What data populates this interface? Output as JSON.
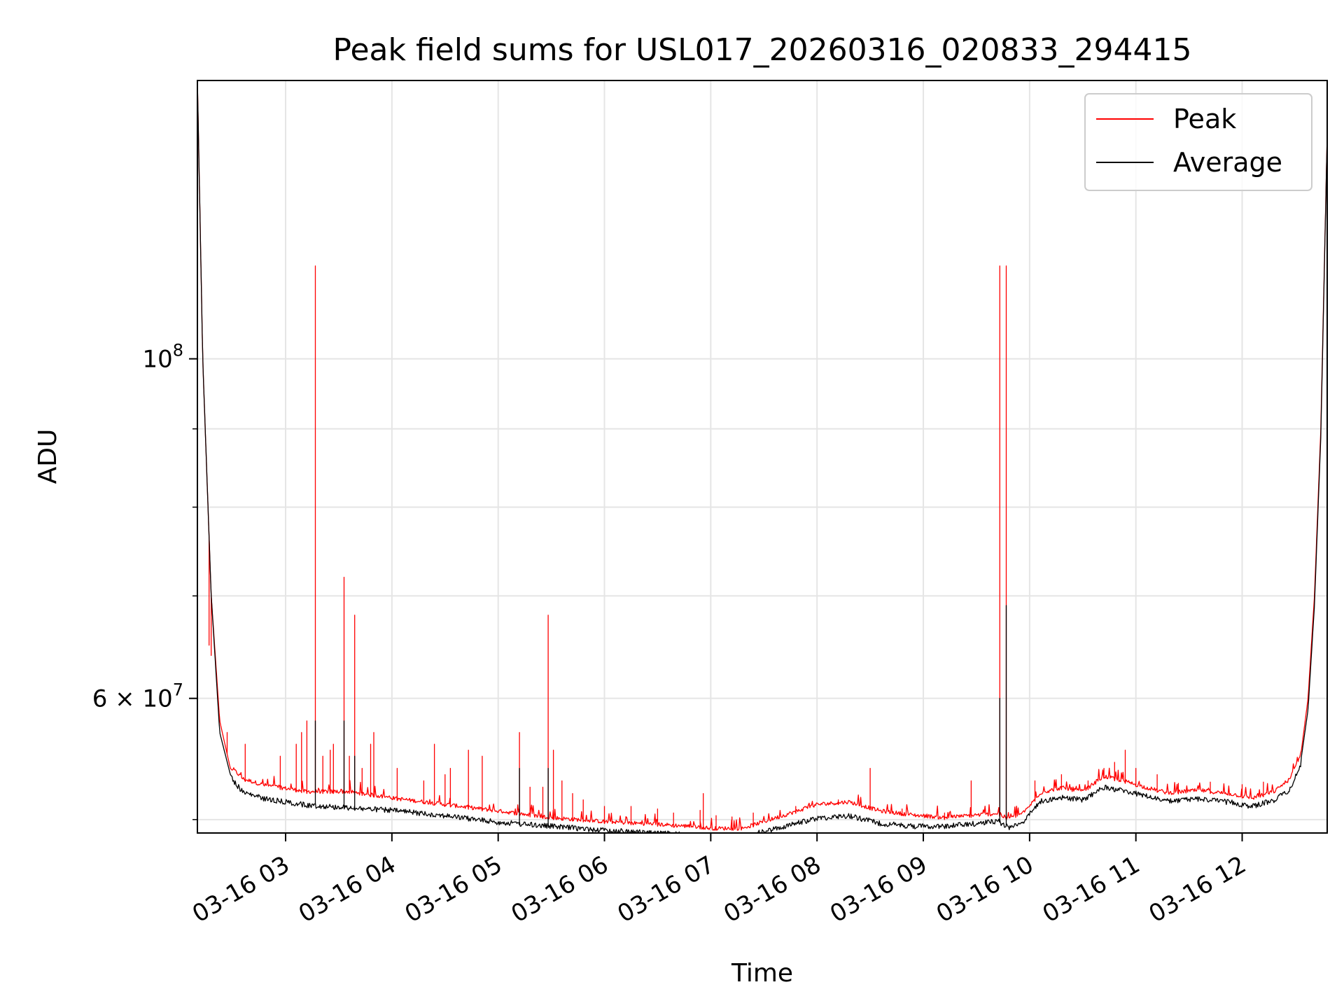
{
  "chart_data": {
    "type": "line",
    "title": "Peak field sums for USL017_20260316_020833_294415",
    "xlabel": "Time",
    "ylabel": "ADU",
    "yscale": "log",
    "xlim_hours": [
      2.17,
      12.8
    ],
    "ylim": [
      49000000,
      152000000
    ],
    "grid": true,
    "legend_position": "top-right",
    "x_ticks": [
      {
        "value": 3,
        "label": "03-16 03"
      },
      {
        "value": 4,
        "label": "03-16 04"
      },
      {
        "value": 5,
        "label": "03-16 05"
      },
      {
        "value": 6,
        "label": "03-16 06"
      },
      {
        "value": 7,
        "label": "03-16 07"
      },
      {
        "value": 8,
        "label": "03-16 08"
      },
      {
        "value": 9,
        "label": "03-16 09"
      },
      {
        "value": 10,
        "label": "03-16 10"
      },
      {
        "value": 11,
        "label": "03-16 11"
      },
      {
        "value": 12,
        "label": "03-16 12"
      }
    ],
    "y_major_ticks": [
      {
        "value": 100000000,
        "base": "10",
        "exp": "8",
        "mult": ""
      },
      {
        "value": 60000000,
        "base": "10",
        "exp": "7",
        "mult": "6"
      }
    ],
    "y_minor_ticks": [
      50000000,
      70000000,
      80000000,
      90000000
    ],
    "series": [
      {
        "name": "Peak",
        "color": "#ff0000",
        "baseline": [
          [
            2.17,
            152000000
          ],
          [
            2.22,
            100000000
          ],
          [
            2.3,
            70000000
          ],
          [
            2.38,
            58000000
          ],
          [
            2.48,
            54000000
          ],
          [
            2.6,
            53000000
          ],
          [
            2.8,
            52500000
          ],
          [
            3.2,
            52000000
          ],
          [
            3.6,
            52000000
          ],
          [
            4.0,
            51500000
          ],
          [
            4.5,
            51000000
          ],
          [
            5.0,
            50500000
          ],
          [
            5.5,
            50000000
          ],
          [
            6.0,
            49700000
          ],
          [
            6.5,
            49500000
          ],
          [
            6.9,
            49300000
          ],
          [
            7.0,
            49200000
          ],
          [
            7.3,
            49200000
          ],
          [
            7.7,
            50200000
          ],
          [
            8.0,
            51000000
          ],
          [
            8.3,
            51200000
          ],
          [
            8.6,
            50500000
          ],
          [
            8.9,
            50200000
          ],
          [
            9.2,
            50000000
          ],
          [
            9.5,
            50200000
          ],
          [
            9.7,
            50300000
          ],
          [
            9.8,
            49900000
          ],
          [
            9.95,
            50400000
          ],
          [
            10.1,
            51900000
          ],
          [
            10.3,
            52300000
          ],
          [
            10.5,
            52000000
          ],
          [
            10.7,
            53200000
          ],
          [
            10.9,
            52800000
          ],
          [
            11.1,
            52300000
          ],
          [
            11.3,
            51900000
          ],
          [
            11.6,
            52100000
          ],
          [
            11.9,
            51800000
          ],
          [
            12.1,
            51500000
          ],
          [
            12.3,
            52000000
          ],
          [
            12.45,
            53000000
          ],
          [
            12.55,
            55000000
          ],
          [
            12.62,
            60000000
          ],
          [
            12.68,
            70000000
          ],
          [
            12.74,
            90000000
          ],
          [
            12.8,
            140000000
          ]
        ],
        "spikes": [
          [
            2.28,
            65000000
          ],
          [
            2.3,
            64000000
          ],
          [
            2.45,
            57000000
          ],
          [
            2.62,
            56000000
          ],
          [
            2.95,
            55000000
          ],
          [
            3.1,
            56000000
          ],
          [
            3.15,
            57000000
          ],
          [
            3.2,
            58000000
          ],
          [
            3.28,
            115000000
          ],
          [
            3.35,
            55000000
          ],
          [
            3.42,
            55500000
          ],
          [
            3.45,
            56000000
          ],
          [
            3.55,
            72000000
          ],
          [
            3.6,
            55000000
          ],
          [
            3.65,
            68000000
          ],
          [
            3.72,
            54000000
          ],
          [
            3.8,
            56000000
          ],
          [
            3.83,
            57000000
          ],
          [
            4.05,
            54000000
          ],
          [
            4.3,
            53000000
          ],
          [
            4.4,
            56000000
          ],
          [
            4.5,
            53500000
          ],
          [
            4.55,
            54000000
          ],
          [
            4.72,
            55500000
          ],
          [
            4.85,
            55000000
          ],
          [
            5.2,
            57000000
          ],
          [
            5.3,
            52500000
          ],
          [
            5.42,
            52500000
          ],
          [
            5.47,
            68000000
          ],
          [
            5.52,
            55500000
          ],
          [
            5.6,
            53000000
          ],
          [
            5.7,
            52000000
          ],
          [
            5.8,
            51500000
          ],
          [
            6.0,
            51000000
          ],
          [
            6.25,
            51000000
          ],
          [
            6.5,
            50800000
          ],
          [
            6.65,
            50500000
          ],
          [
            6.9,
            50700000
          ],
          [
            6.93,
            52000000
          ],
          [
            7.05,
            50300000
          ],
          [
            7.2,
            50200000
          ],
          [
            7.4,
            50500000
          ],
          [
            7.8,
            51000000
          ],
          [
            8.2,
            51500000
          ],
          [
            8.5,
            54000000
          ],
          [
            8.8,
            50800000
          ],
          [
            9.2,
            50500000
          ],
          [
            9.45,
            53000000
          ],
          [
            9.72,
            115000000
          ],
          [
            9.78,
            115000000
          ],
          [
            10.05,
            53000000
          ],
          [
            10.3,
            53500000
          ],
          [
            10.55,
            53000000
          ],
          [
            10.7,
            54000000
          ],
          [
            10.8,
            54500000
          ],
          [
            10.9,
            55500000
          ],
          [
            11.0,
            54000000
          ],
          [
            11.2,
            53500000
          ],
          [
            11.4,
            52800000
          ],
          [
            11.7,
            52900000
          ],
          [
            12.0,
            52700000
          ],
          [
            12.2,
            52900000
          ]
        ]
      },
      {
        "name": "Average",
        "color": "#000000",
        "baseline": [
          [
            2.17,
            152000000
          ],
          [
            2.22,
            100000000
          ],
          [
            2.3,
            70000000
          ],
          [
            2.38,
            57000000
          ],
          [
            2.48,
            53500000
          ],
          [
            2.6,
            52300000
          ],
          [
            2.8,
            51800000
          ],
          [
            3.2,
            51300000
          ],
          [
            3.6,
            51100000
          ],
          [
            4.0,
            50900000
          ],
          [
            4.5,
            50500000
          ],
          [
            5.0,
            50000000
          ],
          [
            5.5,
            49700000
          ],
          [
            6.0,
            49400000
          ],
          [
            6.5,
            49200000
          ],
          [
            6.9,
            49000000
          ],
          [
            7.0,
            48900000
          ],
          [
            7.3,
            48900000
          ],
          [
            7.7,
            49700000
          ],
          [
            8.0,
            50300000
          ],
          [
            8.3,
            50500000
          ],
          [
            8.6,
            49900000
          ],
          [
            8.9,
            49700000
          ],
          [
            9.2,
            49700000
          ],
          [
            9.5,
            49900000
          ],
          [
            9.7,
            50100000
          ],
          [
            9.8,
            49600000
          ],
          [
            9.95,
            50100000
          ],
          [
            10.1,
            51600000
          ],
          [
            10.3,
            51900000
          ],
          [
            10.5,
            51700000
          ],
          [
            10.7,
            52700000
          ],
          [
            10.9,
            52400000
          ],
          [
            11.1,
            52000000
          ],
          [
            11.3,
            51600000
          ],
          [
            11.6,
            51800000
          ],
          [
            11.9,
            51500000
          ],
          [
            12.1,
            51200000
          ],
          [
            12.3,
            51700000
          ],
          [
            12.45,
            52500000
          ],
          [
            12.55,
            54500000
          ],
          [
            12.62,
            59000000
          ],
          [
            12.68,
            69000000
          ],
          [
            12.74,
            89000000
          ],
          [
            12.8,
            140000000
          ]
        ],
        "spikes": [
          [
            3.28,
            58000000
          ],
          [
            3.55,
            58000000
          ],
          [
            3.65,
            55000000
          ],
          [
            5.2,
            54000000
          ],
          [
            5.47,
            54000000
          ],
          [
            9.72,
            60000000
          ],
          [
            9.78,
            69000000
          ]
        ]
      }
    ]
  }
}
